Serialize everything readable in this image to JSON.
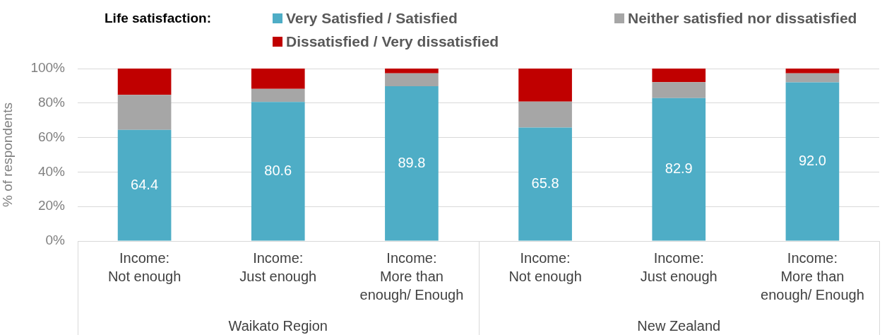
{
  "chart_data": {
    "type": "bar",
    "stacked": true,
    "categories": [
      "Income:\nNot enough",
      "Income:\nJust enough",
      "Income:\nMore than\nenough/ Enough",
      "Income:\nNot enough",
      "Income:\nJust enough",
      "Income:\nMore than\nenough/ Enough"
    ],
    "series": [
      {
        "name": "Very Satisfied / Satisfied",
        "color": "#4eadc6",
        "values": [
          64.4,
          80.6,
          89.8,
          65.8,
          82.9,
          92.0
        ],
        "value_labels": [
          "64.4",
          "80.6",
          "89.8",
          "65.8",
          "82.9",
          "92.0"
        ]
      },
      {
        "name": "Neither satisfied nor dissatisfied",
        "color": "#a6a6a6",
        "values": [
          20.3,
          7.6,
          7.4,
          15.0,
          9.2,
          5.2
        ]
      },
      {
        "name": "Dissatisfied / Very dissatisfied",
        "color": "#c00000",
        "values": [
          15.3,
          11.8,
          2.8,
          19.2,
          7.9,
          2.8
        ]
      }
    ],
    "ylim": [
      0,
      100
    ],
    "yticks": [
      {
        "value": 0,
        "label": "0%"
      },
      {
        "value": 20,
        "label": "20%"
      },
      {
        "value": 40,
        "label": "40%"
      },
      {
        "value": 60,
        "label": "60%"
      },
      {
        "value": 80,
        "label": "80%"
      },
      {
        "value": 100,
        "label": "100%"
      }
    ],
    "ylabel": "% of respondents",
    "legend_title": "Life satisfaction:",
    "legend": "top",
    "grid": "y",
    "annotations": [
      "Waikato Region",
      "New Zealand"
    ]
  }
}
